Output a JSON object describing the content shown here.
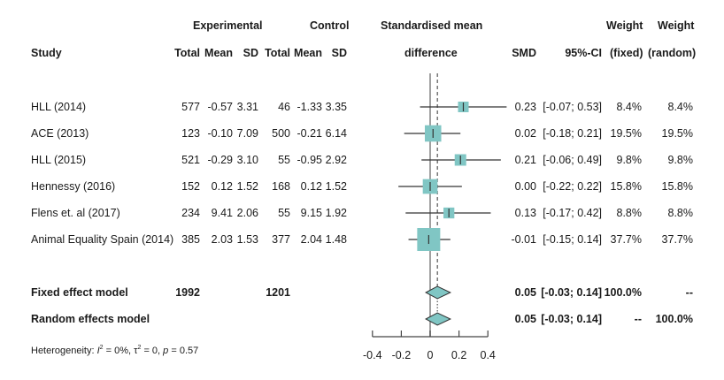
{
  "headers": {
    "study": "Study",
    "experimental": "Experimental",
    "control": "Control",
    "smd_plot_line1": "Standardised mean",
    "smd_plot_line2": "difference",
    "total_e": "Total",
    "mean_e": "Mean",
    "sd_e": "SD",
    "total_c": "Total",
    "mean_c": "Mean",
    "sd_c": "SD",
    "smd": "SMD",
    "ci": "95%-CI",
    "weight_fixed_line1": "Weight",
    "weight_fixed_line2": "(fixed)",
    "weight_random_line1": "Weight",
    "weight_random_line2": "(random)"
  },
  "studies": [
    {
      "name": "HLL (2014)",
      "total_e": "577",
      "mean_e": "-0.57",
      "sd_e": "3.31",
      "total_c": "46",
      "mean_c": "-1.33",
      "sd_c": "3.35",
      "smd": "0.23",
      "ci": "[-0.07; 0.53]",
      "w_fixed": "8.4%",
      "w_random": "8.4%"
    },
    {
      "name": "ACE (2013)",
      "total_e": "123",
      "mean_e": "-0.10",
      "sd_e": "7.09",
      "total_c": "500",
      "mean_c": "-0.21",
      "sd_c": "6.14",
      "smd": "0.02",
      "ci": "[-0.18; 0.21]",
      "w_fixed": "19.5%",
      "w_random": "19.5%"
    },
    {
      "name": "HLL (2015)",
      "total_e": "521",
      "mean_e": "-0.29",
      "sd_e": "3.10",
      "total_c": "55",
      "mean_c": "-0.95",
      "sd_c": "2.92",
      "smd": "0.21",
      "ci": "[-0.06; 0.49]",
      "w_fixed": "9.8%",
      "w_random": "9.8%"
    },
    {
      "name": "Hennessy (2016)",
      "total_e": "152",
      "mean_e": "0.12",
      "sd_e": "1.52",
      "total_c": "168",
      "mean_c": "0.12",
      "sd_c": "1.52",
      "smd": "0.00",
      "ci": "[-0.22; 0.22]",
      "w_fixed": "15.8%",
      "w_random": "15.8%"
    },
    {
      "name": "Flens et. al (2017)",
      "total_e": "234",
      "mean_e": "9.41",
      "sd_e": "2.06",
      "total_c": "55",
      "mean_c": "9.15",
      "sd_c": "1.92",
      "smd": "0.13",
      "ci": "[-0.17; 0.42]",
      "w_fixed": "8.8%",
      "w_random": "8.8%"
    },
    {
      "name": "Animal Equality Spain (2014)",
      "total_e": "385",
      "mean_e": "2.03",
      "sd_e": "1.53",
      "total_c": "377",
      "mean_c": "2.04",
      "sd_c": "1.48",
      "smd": "-0.01",
      "ci": "[-0.15; 0.14]",
      "w_fixed": "37.7%",
      "w_random": "37.7%"
    }
  ],
  "models": [
    {
      "name": "Fixed effect model",
      "total_e": "1992",
      "total_c": "1201",
      "smd": "0.05",
      "ci": "[-0.03; 0.14]",
      "w_fixed": "100.0%",
      "w_random": "--"
    },
    {
      "name": "Random effects model",
      "total_e": "",
      "total_c": "",
      "smd": "0.05",
      "ci": "[-0.03; 0.14]",
      "w_fixed": "--",
      "w_random": "100.0%"
    }
  ],
  "heterogeneity": {
    "prefix": "Heterogeneity: ",
    "i2_symbol": "I",
    "i2_value": " = 0%, ",
    "tau_symbol": "τ",
    "tau_value": " = 0, ",
    "p_symbol": "p",
    "p_value": " = 0.57"
  },
  "colors": {
    "square_fill": "#80c6c4",
    "line": "#333333",
    "axis": "#444444"
  },
  "chart_data": {
    "type": "forest",
    "title": "",
    "xlabel": "Standardised mean difference",
    "xlim": [
      -0.4,
      0.4
    ],
    "xticks": [
      -0.4,
      -0.2,
      0,
      0.2,
      0.4
    ],
    "xtick_labels": [
      "-0.4",
      "-0.2",
      "0",
      "0.2",
      "0.4"
    ],
    "null_line": 0,
    "summary_line": 0.05,
    "studies": [
      {
        "label": "HLL (2014)",
        "smd": 0.23,
        "lower": -0.07,
        "upper": 0.53,
        "weight": 8.4
      },
      {
        "label": "ACE (2013)",
        "smd": 0.02,
        "lower": -0.18,
        "upper": 0.21,
        "weight": 19.5
      },
      {
        "label": "HLL (2015)",
        "smd": 0.21,
        "lower": -0.06,
        "upper": 0.49,
        "weight": 9.8
      },
      {
        "label": "Hennessy (2016)",
        "smd": 0.0,
        "lower": -0.22,
        "upper": 0.22,
        "weight": 15.8
      },
      {
        "label": "Flens et. al (2017)",
        "smd": 0.13,
        "lower": -0.17,
        "upper": 0.42,
        "weight": 8.8
      },
      {
        "label": "Animal Equality Spain (2014)",
        "smd": -0.01,
        "lower": -0.15,
        "upper": 0.14,
        "weight": 37.7
      }
    ],
    "summaries": [
      {
        "label": "Fixed effect model",
        "smd": 0.05,
        "lower": -0.03,
        "upper": 0.14
      },
      {
        "label": "Random effects model",
        "smd": 0.05,
        "lower": -0.03,
        "upper": 0.14
      }
    ]
  }
}
